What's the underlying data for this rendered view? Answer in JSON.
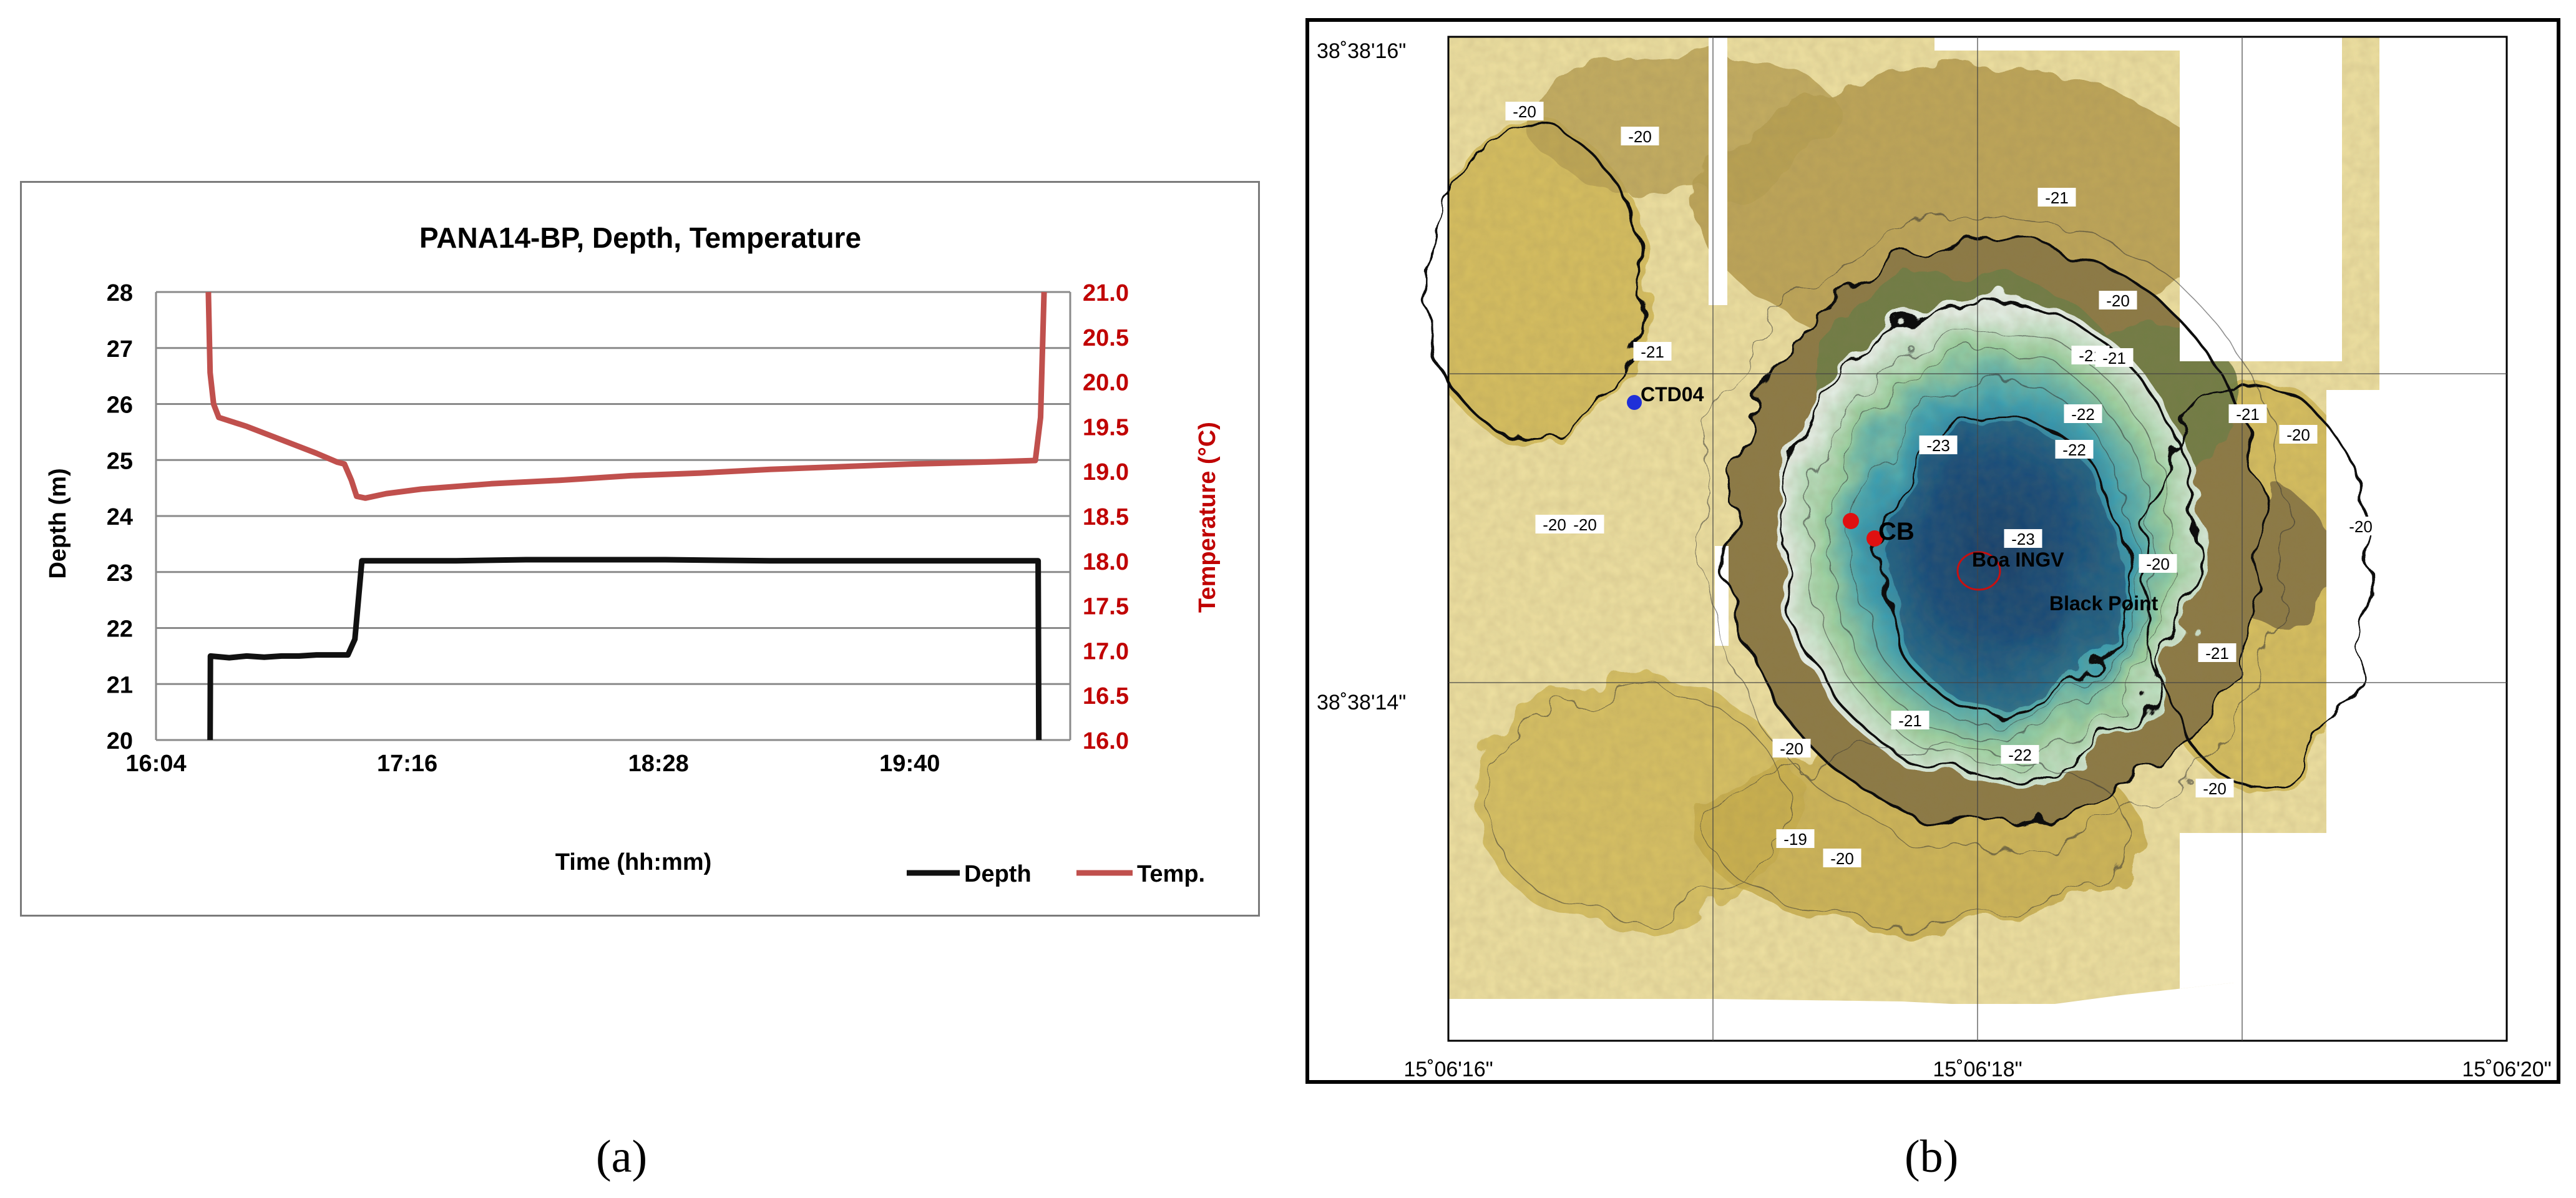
{
  "panel_a": {
    "caption": "(a)",
    "chart_data": {
      "type": "line",
      "title": "PANA14-BP, Depth, Temperature",
      "xlabel": "Time (hh:mm)",
      "ylabel": "Depth (m)",
      "y2label": "Temperature (°C)",
      "x_ticks": [
        "16:04",
        "17:16",
        "18:28",
        "19:40"
      ],
      "x_tick_minutes": [
        964,
        1036,
        1108,
        1180
      ],
      "xlim_minutes": [
        964,
        1226
      ],
      "ylim": [
        20,
        28
      ],
      "y_ticks": [
        "20",
        "21",
        "22",
        "23",
        "24",
        "25",
        "26",
        "27",
        "28"
      ],
      "y2lim": [
        16.0,
        21.0
      ],
      "y2_ticks": [
        "16.0",
        "16.5",
        "17.0",
        "17.5",
        "18.0",
        "18.5",
        "19.0",
        "19.5",
        "20.0",
        "20.5",
        "21.0"
      ],
      "grid": "horizontal",
      "legend": "bottom-right",
      "series": [
        {
          "name": "Depth",
          "axis": "left",
          "color": "#111111",
          "points": [
            [
              979.5,
              20.0
            ],
            [
              979.6,
              21.5
            ],
            [
              985,
              21.47
            ],
            [
              990,
              21.5
            ],
            [
              995,
              21.48
            ],
            [
              1000,
              21.5
            ],
            [
              1005,
              21.5
            ],
            [
              1010,
              21.52
            ],
            [
              1019,
              21.52
            ],
            [
              1021,
              21.8
            ],
            [
              1023,
              23.2
            ],
            [
              1035,
              23.2
            ],
            [
              1050,
              23.2
            ],
            [
              1070,
              23.22
            ],
            [
              1090,
              23.22
            ],
            [
              1110,
              23.22
            ],
            [
              1140,
              23.2
            ],
            [
              1170,
              23.2
            ],
            [
              1200,
              23.2
            ],
            [
              1215,
              23.2
            ],
            [
              1216.8,
              23.2
            ],
            [
              1217,
              20.0
            ]
          ]
        },
        {
          "name": "Temp.",
          "axis": "right",
          "color": "#c0504d",
          "points": [
            [
              979,
              21.0
            ],
            [
              979.5,
              20.1
            ],
            [
              980.5,
              19.75
            ],
            [
              982,
              19.6
            ],
            [
              990,
              19.5
            ],
            [
              1000,
              19.35
            ],
            [
              1010,
              19.2
            ],
            [
              1016,
              19.1
            ],
            [
              1018,
              19.08
            ],
            [
              1020,
              18.9
            ],
            [
              1021.5,
              18.72
            ],
            [
              1024,
              18.7
            ],
            [
              1030,
              18.75
            ],
            [
              1040,
              18.8
            ],
            [
              1060,
              18.86
            ],
            [
              1080,
              18.9
            ],
            [
              1100,
              18.95
            ],
            [
              1120,
              18.98
            ],
            [
              1140,
              19.02
            ],
            [
              1160,
              19.05
            ],
            [
              1180,
              19.08
            ],
            [
              1200,
              19.1
            ],
            [
              1216,
              19.12
            ],
            [
              1217.5,
              19.6
            ],
            [
              1218.5,
              21.0
            ]
          ]
        }
      ]
    }
  },
  "panel_b": {
    "caption": "(b)",
    "lat_labels": [
      "38˚38'16\"",
      "38˚38'14\""
    ],
    "lon_labels": [
      "15˚06'16\"",
      "15˚06'18\"",
      "15˚06'20\""
    ],
    "stations": [
      {
        "label": "CTD04",
        "color": "#1f2fd8"
      },
      {
        "label": "CB",
        "color": "#e01010"
      }
    ],
    "site_labels": [
      "Boa INGV",
      "Black Point"
    ],
    "contour_labels": [
      "-20",
      "-20",
      "-21",
      "-21",
      "-20",
      "-21",
      "-22",
      "-23",
      "-22",
      "-21",
      "-20",
      "-20",
      "-20",
      "-23",
      "-21",
      "-21",
      "-22",
      "-20",
      "-19",
      "-20",
      "-20",
      "-21",
      "-20",
      "-20"
    ],
    "colors": {
      "shallow": "#efe1a2",
      "mid": "#d4bb5a",
      "slope": "#8d7a45",
      "rim": "#6f7d44",
      "pale": "#e8f2ea",
      "green": "#9ed4a4",
      "teal": "#3aa0b4",
      "deep": "#1b5c8f",
      "deepest": "#123f6b"
    }
  }
}
